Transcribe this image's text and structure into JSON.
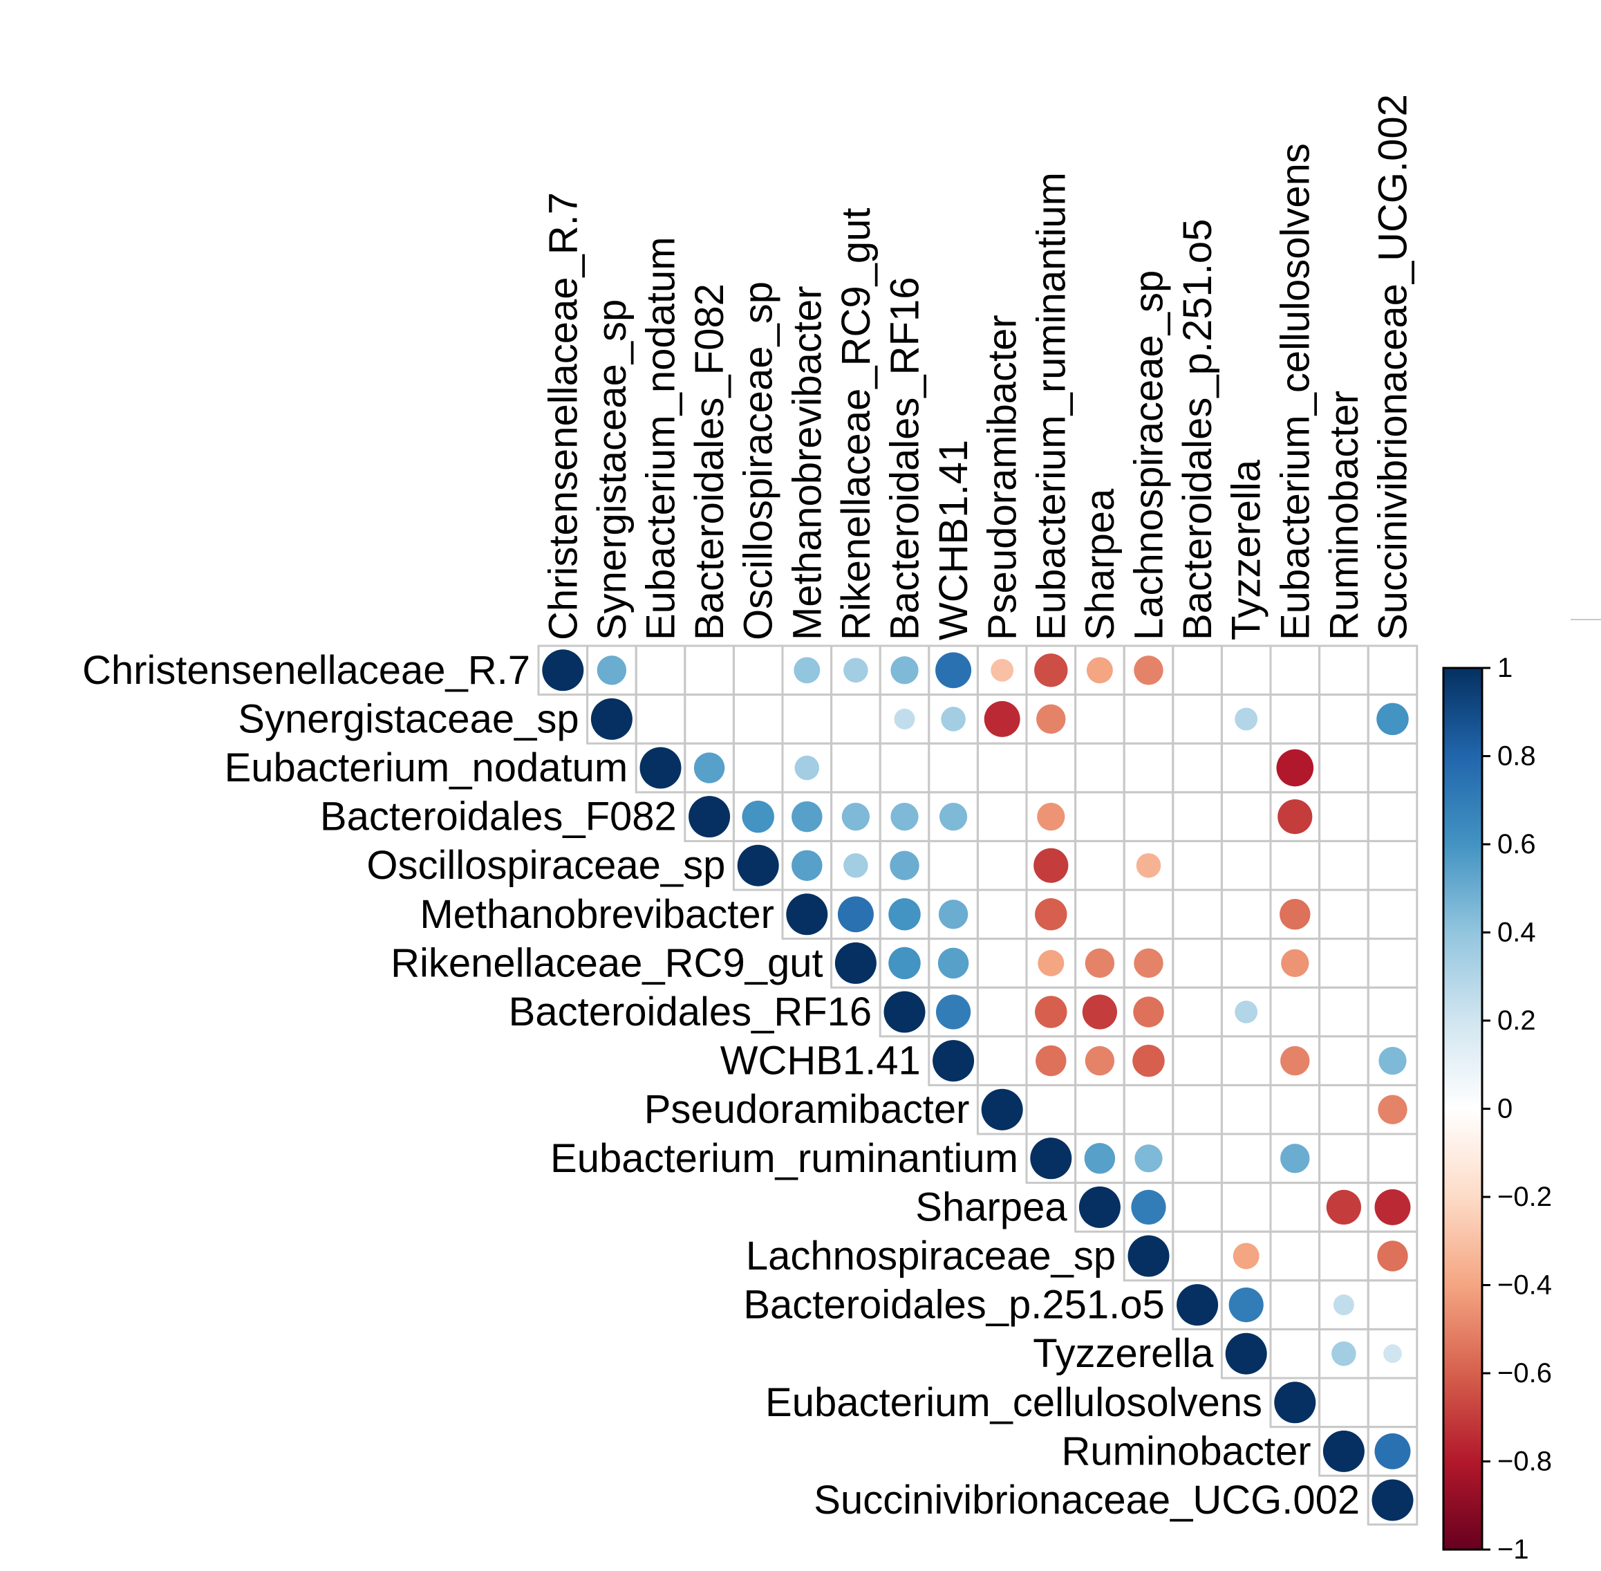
{
  "chart_data": {
    "type": "heatmap",
    "subtype": "corrplot-upper-circle",
    "title": "",
    "variables": [
      "Christensenellaceae_R.7",
      "Synergistaceae_sp",
      "Eubacterium_nodatum",
      "Bacteroidales_F082",
      "Oscillospiraceae_sp",
      "Methanobrevibacter",
      "Rikenellaceae_RC9_gut",
      "Bacteroidales_RF16",
      "WCHB1.41",
      "Pseudoramibacter",
      "Eubacterium_ruminantium",
      "Sharpea",
      "Lachnospiraceae_sp",
      "Bacteroidales_p.251.o5",
      "Tyzzerella",
      "Eubacterium_cellulosolvens",
      "Ruminobacter",
      "Succinivibrionaceae_UCG.002"
    ],
    "cells": [
      {
        "row": 0,
        "col": 0,
        "value": 1.0
      },
      {
        "row": 0,
        "col": 1,
        "value": 0.5
      },
      {
        "row": 0,
        "col": 5,
        "value": 0.4
      },
      {
        "row": 0,
        "col": 6,
        "value": 0.35
      },
      {
        "row": 0,
        "col": 7,
        "value": 0.45
      },
      {
        "row": 0,
        "col": 8,
        "value": 0.75
      },
      {
        "row": 0,
        "col": 9,
        "value": -0.3
      },
      {
        "row": 0,
        "col": 10,
        "value": -0.65
      },
      {
        "row": 0,
        "col": 11,
        "value": -0.4
      },
      {
        "row": 0,
        "col": 12,
        "value": -0.5
      },
      {
        "row": 1,
        "col": 1,
        "value": 1.0
      },
      {
        "row": 1,
        "col": 7,
        "value": 0.25
      },
      {
        "row": 1,
        "col": 8,
        "value": 0.35
      },
      {
        "row": 1,
        "col": 9,
        "value": -0.75
      },
      {
        "row": 1,
        "col": 10,
        "value": -0.5
      },
      {
        "row": 1,
        "col": 14,
        "value": 0.3
      },
      {
        "row": 1,
        "col": 17,
        "value": 0.6
      },
      {
        "row": 2,
        "col": 2,
        "value": 1.0
      },
      {
        "row": 2,
        "col": 3,
        "value": 0.55
      },
      {
        "row": 2,
        "col": 5,
        "value": 0.35
      },
      {
        "row": 2,
        "col": 15,
        "value": -0.8
      },
      {
        "row": 3,
        "col": 3,
        "value": 1.0
      },
      {
        "row": 3,
        "col": 4,
        "value": 0.6
      },
      {
        "row": 3,
        "col": 5,
        "value": 0.55
      },
      {
        "row": 3,
        "col": 6,
        "value": 0.45
      },
      {
        "row": 3,
        "col": 7,
        "value": 0.45
      },
      {
        "row": 3,
        "col": 8,
        "value": 0.45
      },
      {
        "row": 3,
        "col": 10,
        "value": -0.45
      },
      {
        "row": 3,
        "col": 15,
        "value": -0.7
      },
      {
        "row": 4,
        "col": 4,
        "value": 1.0
      },
      {
        "row": 4,
        "col": 5,
        "value": 0.55
      },
      {
        "row": 4,
        "col": 6,
        "value": 0.35
      },
      {
        "row": 4,
        "col": 7,
        "value": 0.5
      },
      {
        "row": 4,
        "col": 10,
        "value": -0.7
      },
      {
        "row": 4,
        "col": 12,
        "value": -0.35
      },
      {
        "row": 5,
        "col": 5,
        "value": 1.0
      },
      {
        "row": 5,
        "col": 6,
        "value": 0.75
      },
      {
        "row": 5,
        "col": 7,
        "value": 0.6
      },
      {
        "row": 5,
        "col": 8,
        "value": 0.5
      },
      {
        "row": 5,
        "col": 10,
        "value": -0.6
      },
      {
        "row": 5,
        "col": 15,
        "value": -0.55
      },
      {
        "row": 6,
        "col": 6,
        "value": 1.0
      },
      {
        "row": 6,
        "col": 7,
        "value": 0.6
      },
      {
        "row": 6,
        "col": 8,
        "value": 0.55
      },
      {
        "row": 6,
        "col": 10,
        "value": -0.4
      },
      {
        "row": 6,
        "col": 11,
        "value": -0.5
      },
      {
        "row": 6,
        "col": 12,
        "value": -0.5
      },
      {
        "row": 6,
        "col": 15,
        "value": -0.45
      },
      {
        "row": 7,
        "col": 7,
        "value": 1.0
      },
      {
        "row": 7,
        "col": 8,
        "value": 0.7
      },
      {
        "row": 7,
        "col": 10,
        "value": -0.6
      },
      {
        "row": 7,
        "col": 11,
        "value": -0.7
      },
      {
        "row": 7,
        "col": 12,
        "value": -0.55
      },
      {
        "row": 7,
        "col": 14,
        "value": 0.3
      },
      {
        "row": 8,
        "col": 8,
        "value": 1.0
      },
      {
        "row": 8,
        "col": 10,
        "value": -0.55
      },
      {
        "row": 8,
        "col": 11,
        "value": -0.5
      },
      {
        "row": 8,
        "col": 12,
        "value": -0.6
      },
      {
        "row": 8,
        "col": 15,
        "value": -0.5
      },
      {
        "row": 8,
        "col": 17,
        "value": 0.45
      },
      {
        "row": 9,
        "col": 9,
        "value": 1.0
      },
      {
        "row": 9,
        "col": 17,
        "value": -0.5
      },
      {
        "row": 10,
        "col": 10,
        "value": 1.0
      },
      {
        "row": 10,
        "col": 11,
        "value": 0.55
      },
      {
        "row": 10,
        "col": 12,
        "value": 0.45
      },
      {
        "row": 10,
        "col": 15,
        "value": 0.5
      },
      {
        "row": 11,
        "col": 11,
        "value": 1.0
      },
      {
        "row": 11,
        "col": 12,
        "value": 0.7
      },
      {
        "row": 11,
        "col": 16,
        "value": -0.7
      },
      {
        "row": 11,
        "col": 17,
        "value": -0.75
      },
      {
        "row": 12,
        "col": 12,
        "value": 1.0
      },
      {
        "row": 12,
        "col": 14,
        "value": -0.4
      },
      {
        "row": 12,
        "col": 17,
        "value": -0.55
      },
      {
        "row": 13,
        "col": 13,
        "value": 1.0
      },
      {
        "row": 13,
        "col": 14,
        "value": 0.7
      },
      {
        "row": 13,
        "col": 16,
        "value": 0.25
      },
      {
        "row": 14,
        "col": 14,
        "value": 1.0
      },
      {
        "row": 14,
        "col": 16,
        "value": 0.35
      },
      {
        "row": 14,
        "col": 17,
        "value": 0.2
      },
      {
        "row": 15,
        "col": 15,
        "value": 1.0
      },
      {
        "row": 16,
        "col": 16,
        "value": 1.0
      },
      {
        "row": 16,
        "col": 17,
        "value": 0.75
      },
      {
        "row": 17,
        "col": 17,
        "value": 1.0
      }
    ],
    "colorbar": {
      "ticks": [
        "1",
        "0.8",
        "0.6",
        "0.4",
        "0.2",
        "0",
        "−0.2",
        "−0.4",
        "−0.6",
        "−0.8",
        "−1"
      ],
      "range": [
        -1,
        1
      ],
      "colors_low_to_high": [
        "#67001f",
        "#b2182b",
        "#d6604d",
        "#f4a582",
        "#fddbc7",
        "#ffffff",
        "#d1e5f0",
        "#92c5de",
        "#4393c3",
        "#2166ac",
        "#053061"
      ]
    }
  }
}
